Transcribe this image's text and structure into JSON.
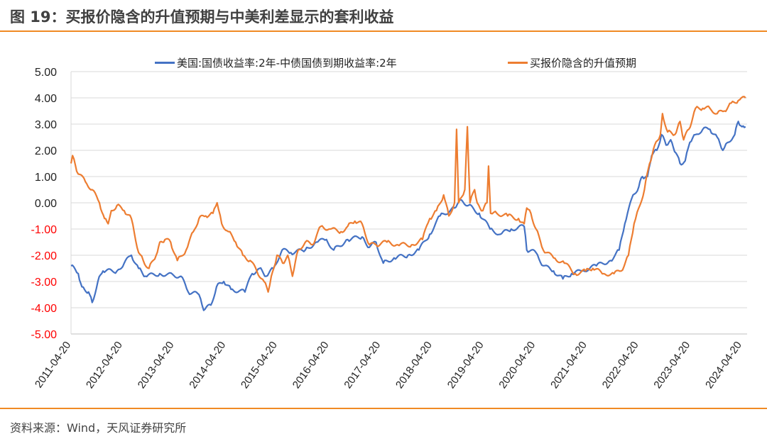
{
  "title": "图 19：买报价隐含的升值预期与中美利差显示的套利收益",
  "source": "资料来源：Wind，天风证券研究所",
  "colors": {
    "spread": "#4472c4",
    "expectation": "#ed7d31",
    "rule": "#f08a24",
    "negative_tick": "#ff0000",
    "grid": "#d9d9d9"
  },
  "chart_data": {
    "type": "line",
    "title": "图 19：买报价隐含的升值预期与中美利差显示的套利收益",
    "xlabel": "",
    "ylabel": "",
    "ylim": [
      -5,
      5
    ],
    "yticks": [
      "5.00",
      "4.00",
      "3.00",
      "2.00",
      "1.00",
      "0.00",
      "-1.00",
      "-2.00",
      "-3.00",
      "-4.00",
      "-5.00"
    ],
    "ytick_values": [
      5,
      4,
      3,
      2,
      1,
      0,
      -1,
      -2,
      -3,
      -4,
      -5
    ],
    "xlim": [
      2011.3,
      2024.4
    ],
    "xticks": [
      "2011-04-20",
      "2012-04-20",
      "2013-04-20",
      "2014-04-20",
      "2015-04-20",
      "2016-04-20",
      "2017-04-20",
      "2018-04-20",
      "2019-04-20",
      "2020-04-20",
      "2021-04-20",
      "2022-04-20",
      "2023-04-20",
      "2024-04-20"
    ],
    "xtick_values": [
      2011.3,
      2012.3,
      2013.3,
      2014.3,
      2015.3,
      2016.3,
      2017.3,
      2018.3,
      2019.3,
      2020.3,
      2021.3,
      2022.3,
      2023.3,
      2024.3
    ],
    "grid": true,
    "legend_position": "top",
    "series": [
      {
        "name": "美国:国债收益率:2年-中债国债到期收益率:2年",
        "color": "#4472c4",
        "x": [
          2011.3,
          2011.44,
          2011.51,
          2011.64,
          2011.71,
          2011.82,
          2011.92,
          2012.19,
          2012.33,
          2012.47,
          2012.61,
          2012.74,
          2013.02,
          2013.43,
          2013.57,
          2013.78,
          2013.87,
          2014.01,
          2014.12,
          2014.26,
          2014.4,
          2014.67,
          2014.81,
          2014.95,
          2015.08,
          2015.22,
          2015.39,
          2015.56,
          2015.84,
          2016.05,
          2016.25,
          2016.39,
          2016.66,
          2016.94,
          2017.08,
          2017.21,
          2017.35,
          2017.56,
          2017.83,
          2018.04,
          2018.25,
          2018.45,
          2018.73,
          2018.87,
          2019.0,
          2019.21,
          2019.42,
          2019.62,
          2019.83,
          2020.08,
          2020.13,
          2020.31,
          2020.45,
          2020.65,
          2020.83,
          2021.0,
          2021.2,
          2021.48,
          2021.75,
          2021.92,
          2022.03,
          2022.19,
          2022.3,
          2022.37,
          2022.47,
          2022.55,
          2022.65,
          2022.74,
          2022.83,
          2022.92,
          2023.02,
          2023.1,
          2023.2,
          2023.29,
          2023.4,
          2023.54,
          2023.68,
          2023.82,
          2023.93,
          2024.02,
          2024.16,
          2024.23,
          2024.3,
          2024.37
        ],
        "y": [
          -2.4,
          -2.7,
          -3.2,
          -3.4,
          -3.8,
          -3.0,
          -2.6,
          -2.6,
          -2.3,
          -2.0,
          -2.5,
          -2.8,
          -2.7,
          -2.8,
          -3.4,
          -3.5,
          -4.1,
          -3.9,
          -3.2,
          -3.0,
          -3.3,
          -3.4,
          -2.7,
          -2.5,
          -2.8,
          -2.5,
          -1.8,
          -1.9,
          -1.8,
          -1.5,
          -1.4,
          -1.8,
          -1.4,
          -1.3,
          -1.7,
          -1.5,
          -2.3,
          -2.1,
          -2.0,
          -1.8,
          -1.2,
          -0.5,
          -0.2,
          0.1,
          -0.1,
          -0.4,
          -1.0,
          -1.2,
          -1.0,
          -0.9,
          -1.8,
          -1.9,
          -2.4,
          -2.6,
          -2.9,
          -2.7,
          -2.6,
          -2.4,
          -2.2,
          -1.8,
          -0.8,
          0.3,
          0.6,
          1.0,
          1.0,
          1.8,
          2.0,
          2.6,
          2.2,
          2.4,
          1.9,
          1.5,
          1.6,
          2.3,
          2.6,
          2.8,
          2.8,
          2.5,
          2.0,
          2.3,
          2.6,
          3.1,
          2.9,
          2.9
        ]
      },
      {
        "name": "买报价隐含的升值预期",
        "color": "#ed7d31",
        "x": [
          2011.3,
          2011.33,
          2011.41,
          2011.58,
          2011.71,
          2011.85,
          2011.95,
          2012.02,
          2012.08,
          2012.19,
          2012.33,
          2012.47,
          2012.61,
          2012.7,
          2012.81,
          2012.95,
          2013.02,
          2013.12,
          2013.23,
          2013.36,
          2013.53,
          2013.67,
          2013.78,
          2013.91,
          2014.05,
          2014.13,
          2014.22,
          2014.35,
          2014.49,
          2014.63,
          2014.77,
          2014.9,
          2015.04,
          2015.12,
          2015.18,
          2015.29,
          2015.4,
          2015.5,
          2015.59,
          2015.7,
          2015.84,
          2015.98,
          2016.14,
          2016.32,
          2016.53,
          2016.66,
          2016.8,
          2016.94,
          2017.08,
          2017.21,
          2017.42,
          2017.63,
          2017.9,
          2018.11,
          2018.25,
          2018.38,
          2018.52,
          2018.62,
          2018.73,
          2018.77,
          2018.81,
          2018.93,
          2018.98,
          2019.03,
          2019.12,
          2019.17,
          2019.28,
          2019.36,
          2019.39,
          2019.43,
          2019.55,
          2019.76,
          2019.97,
          2020.08,
          2020.13,
          2020.21,
          2020.31,
          2020.45,
          2020.65,
          2020.86,
          2021.07,
          2021.27,
          2021.41,
          2021.62,
          2021.82,
          2021.96,
          2022.1,
          2022.21,
          2022.3,
          2022.41,
          2022.51,
          2022.61,
          2022.72,
          2022.76,
          2022.86,
          2023.0,
          2023.1,
          2023.17,
          2023.27,
          2023.4,
          2023.54,
          2023.68,
          2023.82,
          2023.96,
          2024.09,
          2024.23,
          2024.37
        ],
        "y": [
          1.5,
          1.8,
          1.2,
          0.8,
          0.5,
          0.0,
          -0.6,
          -0.8,
          -0.3,
          -0.1,
          -0.3,
          -0.6,
          -1.9,
          -2.2,
          -2.5,
          -2.0,
          -1.5,
          -1.4,
          -1.5,
          -2.2,
          -1.8,
          -1.1,
          -0.6,
          -0.5,
          -0.4,
          0.0,
          -0.8,
          -1.1,
          -1.5,
          -2.0,
          -2.2,
          -2.6,
          -3.0,
          -3.4,
          -2.8,
          -2.0,
          -2.3,
          -2.0,
          -2.8,
          -1.8,
          -1.5,
          -1.6,
          -0.9,
          -1.0,
          -1.1,
          -0.9,
          -0.7,
          -0.8,
          -1.6,
          -1.6,
          -1.5,
          -1.6,
          -1.6,
          -1.4,
          -0.6,
          -0.3,
          0.3,
          -0.5,
          0.0,
          2.8,
          0.0,
          0.5,
          2.9,
          0.0,
          0.5,
          0.0,
          -0.3,
          0.0,
          1.4,
          -0.4,
          -0.4,
          -0.5,
          -0.6,
          -0.8,
          -0.2,
          -0.4,
          -1.0,
          -1.8,
          -2.1,
          -2.3,
          -2.7,
          -2.6,
          -2.5,
          -2.7,
          -2.7,
          -2.6,
          -2.0,
          -0.8,
          -0.2,
          0.5,
          1.5,
          2.2,
          2.6,
          3.4,
          2.7,
          2.6,
          3.1,
          2.4,
          2.8,
          3.6,
          3.6,
          3.6,
          3.4,
          3.5,
          3.8,
          3.9,
          4.0
        ]
      }
    ]
  }
}
